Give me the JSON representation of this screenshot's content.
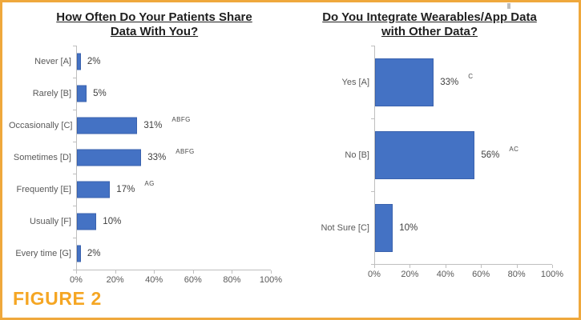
{
  "figure_label": "FIGURE 2",
  "colors": {
    "frame_border": "#EFA83C",
    "figure_label": "#F5A623",
    "bar_fill": "#4472C4",
    "bar_border": "#3A62AE",
    "axis_line": "#BFBFBF",
    "tick_label": "#595959",
    "category_label": "#595959",
    "title": "#1F1F1F"
  },
  "chart_data": [
    {
      "type": "bar",
      "orientation": "horizontal",
      "title": "How Often Do Your Patients Share Data With You?",
      "title_lines": [
        "How Often Do Your Patients Share",
        "Data With You?"
      ],
      "categories": [
        "Never [A]",
        "Rarely [B]",
        "Occasionally [C]",
        "Sometimes [D]",
        "Frequently [E]",
        "Usually [F]",
        "Every time [G]"
      ],
      "values": [
        2,
        5,
        31,
        33,
        17,
        10,
        2
      ],
      "value_labels": [
        "2%",
        "5%",
        "31%",
        "33%",
        "17%",
        "10%",
        "2%"
      ],
      "annotations": [
        "",
        "",
        "ABFG",
        "ABFG",
        "AG",
        "",
        ""
      ],
      "xlim": [
        0,
        100
      ],
      "x_tick_labels": [
        "0%",
        "20%",
        "40%",
        "60%",
        "80%",
        "100%"
      ],
      "xlabel": "",
      "ylabel": "",
      "legend": "none",
      "grid": "off",
      "bar_color": "#4472C4"
    },
    {
      "type": "bar",
      "orientation": "horizontal",
      "title": "Do You Integrate Wearables/App Data with Other Data?",
      "title_lines": [
        "Do You Integrate Wearables/App Data",
        "with Other Data?"
      ],
      "categories": [
        "Yes [A]",
        "No [B]",
        "Not Sure [C]"
      ],
      "values": [
        33,
        56,
        10
      ],
      "value_labels": [
        "33%",
        "56%",
        "10%"
      ],
      "annotations": [
        "C",
        "AC",
        ""
      ],
      "xlim": [
        0,
        100
      ],
      "x_tick_labels": [
        "0%",
        "20%",
        "40%",
        "60%",
        "80%",
        "100%"
      ],
      "xlabel": "",
      "ylabel": "",
      "legend": "none",
      "grid": "off",
      "bar_color": "#4472C4"
    }
  ]
}
